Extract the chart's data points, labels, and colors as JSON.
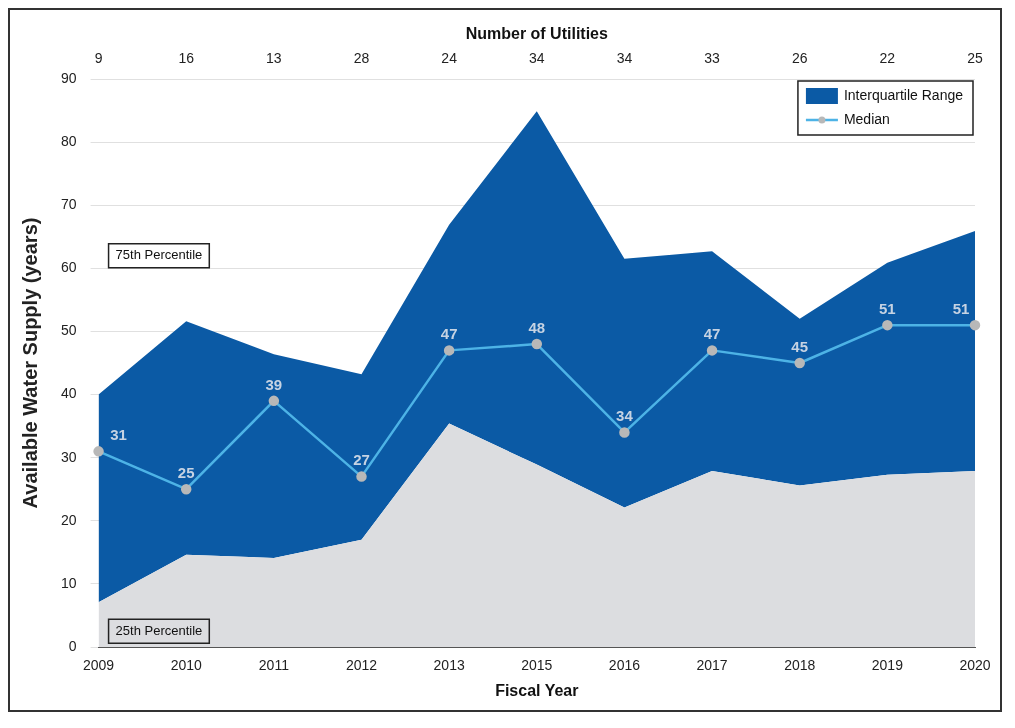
{
  "chart_data": {
    "type": "area",
    "xlabel": "Fiscal Year",
    "ylabel": "Available Water Supply (years)",
    "x2label": "Number of Utilities",
    "categories": [
      "2009",
      "2010",
      "2011",
      "2012",
      "2013",
      "2015",
      "2016",
      "2017",
      "2018",
      "2019",
      "2020"
    ],
    "series": [
      {
        "color": "#dcdde0",
        "values": [
          7.1,
          14.6,
          14.1,
          17,
          35.4,
          28.9,
          22.1,
          27.9,
          25.6,
          27.3,
          27.9
        ]
      },
      {
        "name": "Interquartile Range",
        "color": "#0b5aa5",
        "values": [
          40,
          51.6,
          46.4,
          43.2,
          66.9,
          84.9,
          61.5,
          62.7,
          52,
          60.9,
          65.9
        ]
      },
      {
        "type": "line",
        "name": "Median",
        "color": "#4db3e6",
        "marker": "circle",
        "values": [
          31,
          25,
          39,
          27,
          47,
          48,
          34,
          47,
          45,
          51,
          51
        ],
        "value_labels": [
          "31",
          "25",
          "39",
          "27",
          "47",
          "48",
          "34",
          "47",
          "45",
          "51",
          "51"
        ]
      }
    ],
    "ylim": [
      0,
      90
    ],
    "yticks": [
      0,
      10,
      20,
      30,
      40,
      50,
      60,
      70,
      80,
      90
    ],
    "grid": "y",
    "legend": "top right",
    "annotations": [
      "75th Percentile",
      "25th Percentile",
      "9",
      "16",
      "13",
      "28",
      "24",
      "34",
      "34",
      "33",
      "26",
      "22",
      "25"
    ]
  }
}
